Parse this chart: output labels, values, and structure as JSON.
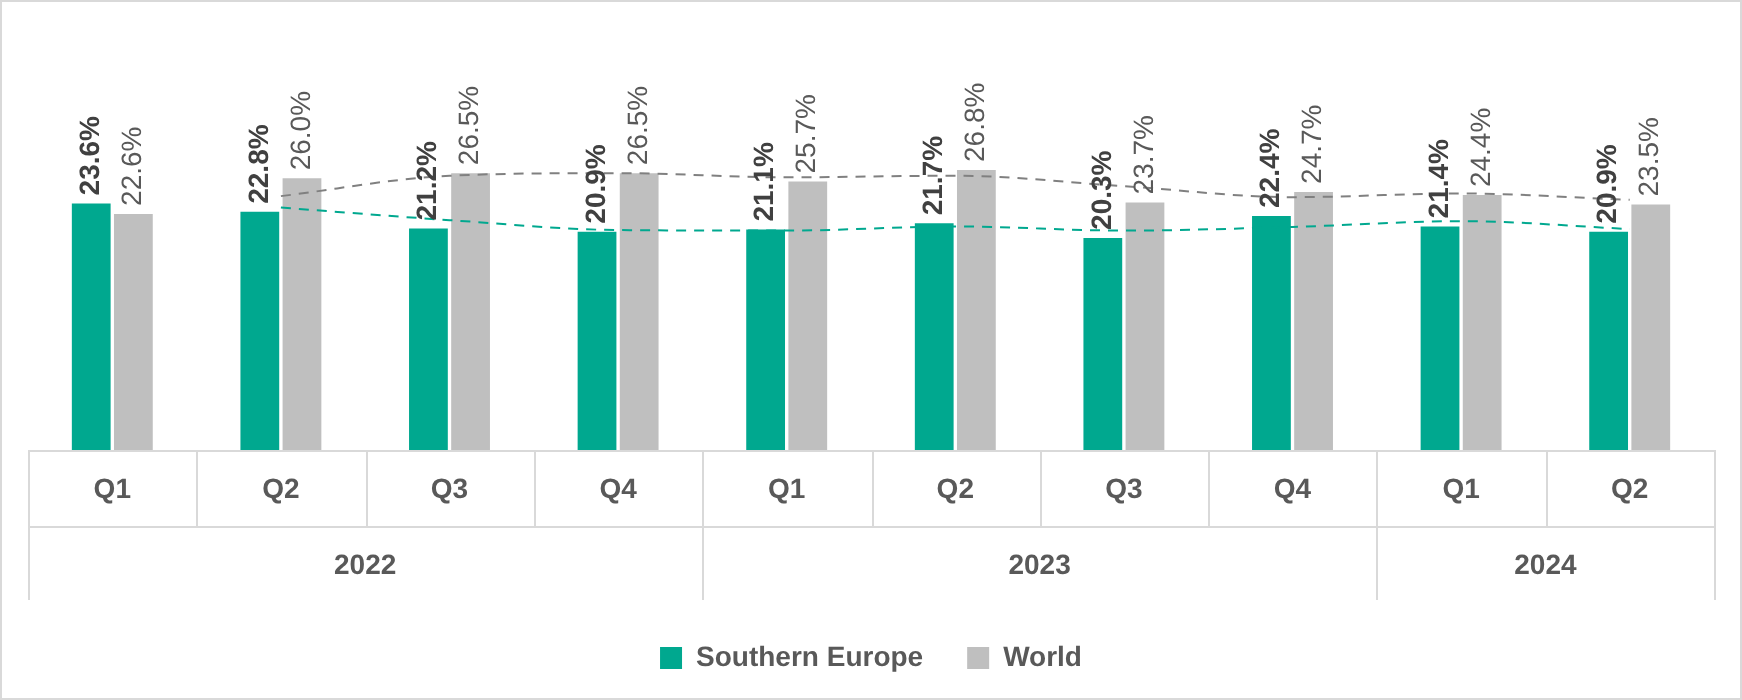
{
  "chart_data": {
    "type": "bar",
    "categories": [
      "Q1",
      "Q2",
      "Q3",
      "Q4",
      "Q1",
      "Q2",
      "Q3",
      "Q4",
      "Q1",
      "Q2"
    ],
    "annotations": [
      "2022",
      "2023",
      "2024"
    ],
    "series": [
      {
        "name": "Southern Europe",
        "color": "#00a88f",
        "values": [
          23.6,
          22.8,
          21.2,
          20.9,
          21.1,
          21.7,
          20.3,
          22.4,
          21.4,
          20.9
        ],
        "value_labels": [
          "23.6%",
          "22.8%",
          "21.2%",
          "20.9%",
          "21.1%",
          "21.7%",
          "20.3%",
          "22.4%",
          "21.4%",
          "20.9%"
        ]
      },
      {
        "name": "World",
        "color": "#bfbfbf",
        "values": [
          22.6,
          26.0,
          26.5,
          26.5,
          25.7,
          26.8,
          23.7,
          24.7,
          24.4,
          23.5
        ],
        "value_labels": [
          "22.6%",
          "26.0%",
          "26.5%",
          "26.5%",
          "25.7%",
          "26.8%",
          "23.7%",
          "24.7%",
          "24.4%",
          "23.5%"
        ]
      },
      {
        "type": "line",
        "color": "#00a88f",
        "line_style": "dashed",
        "values": [
          null,
          23.2,
          22.0,
          21.05,
          21.0,
          21.4,
          21.0,
          21.35,
          21.9,
          21.15
        ]
      },
      {
        "type": "line",
        "color": "#808080",
        "line_style": "dashed",
        "values": [
          null,
          24.3,
          26.25,
          26.5,
          26.1,
          26.25,
          25.25,
          24.2,
          24.55,
          23.95
        ]
      }
    ],
    "legend": "bottom"
  }
}
